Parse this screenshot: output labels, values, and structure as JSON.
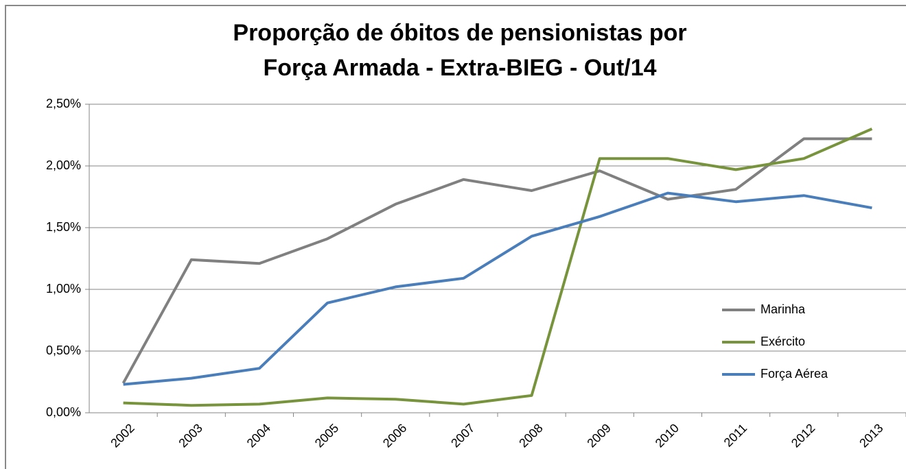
{
  "chart_data": {
    "type": "line",
    "title": [
      "Proporção de óbitos de pensionistas por",
      "Força Armada - Extra-BIEG - Out/14"
    ],
    "categories": [
      "2002",
      "2003",
      "2004",
      "2005",
      "2006",
      "2007",
      "2008",
      "2009",
      "2010",
      "2011",
      "2012",
      "2013"
    ],
    "series": [
      {
        "name": "Marinha",
        "color": "#808080",
        "values": [
          0.24,
          1.24,
          1.21,
          1.41,
          1.69,
          1.89,
          1.8,
          1.96,
          1.73,
          1.81,
          2.22,
          2.22
        ]
      },
      {
        "name": "Exército",
        "color": "#77933c",
        "values": [
          0.08,
          0.06,
          0.07,
          0.12,
          0.11,
          0.07,
          0.14,
          2.06,
          2.06,
          1.97,
          2.06,
          2.3
        ]
      },
      {
        "name": "Força Aérea",
        "color": "#4a7ebb",
        "values": [
          0.23,
          0.28,
          0.36,
          0.89,
          1.02,
          1.09,
          1.43,
          1.59,
          1.78,
          1.71,
          1.76,
          1.66
        ]
      }
    ],
    "ylim": [
      0,
      2.5
    ],
    "yticks": [
      {
        "value": 0,
        "label": "0,00%"
      },
      {
        "value": 0.5,
        "label": "0,50%"
      },
      {
        "value": 1,
        "label": "1,00%"
      },
      {
        "value": 1.5,
        "label": "1,50%"
      },
      {
        "value": 2,
        "label": "2,00%"
      },
      {
        "value": 2.5,
        "label": "2,50%"
      }
    ],
    "grid": true,
    "legend": "right"
  }
}
